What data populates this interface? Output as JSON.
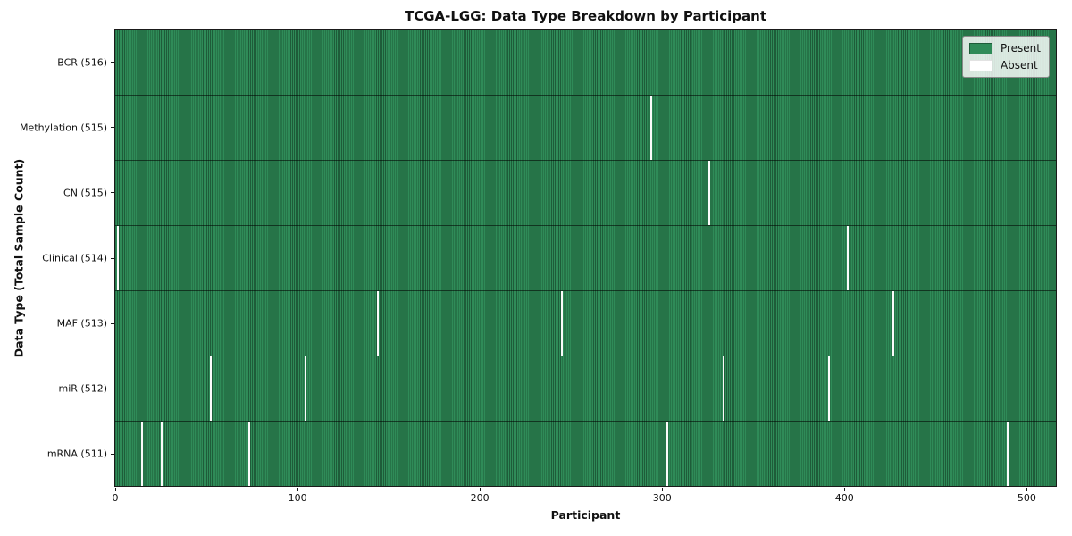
{
  "chart_data": {
    "type": "heatmap",
    "title": "TCGA-LGG: Data Type Breakdown by Participant",
    "xlabel": "Participant",
    "ylabel": "Data Type (Total Sample Count)",
    "x_ticks": [
      0,
      100,
      200,
      300,
      400,
      500
    ],
    "x_range": [
      -0.5,
      516.5
    ],
    "n_participants": 516,
    "grid": false,
    "legend_position": "upper right",
    "legend": [
      {
        "label": "Present",
        "color": "#2f8b58"
      },
      {
        "label": "Absent",
        "color": "#ffffff"
      }
    ],
    "colors": {
      "present_fill": "#2f8b58",
      "present_edge": "#1e5c39",
      "absent": "#ffffff"
    },
    "rows": [
      {
        "label": "BCR (516)",
        "key": "bcr",
        "total": 516,
        "absent_participants": []
      },
      {
        "label": "Methylation (515)",
        "key": "methylation",
        "total": 515,
        "absent_participants": [
          294
        ]
      },
      {
        "label": "CN (515)",
        "key": "cn",
        "total": 515,
        "absent_participants": [
          326
        ]
      },
      {
        "label": "Clinical (514)",
        "key": "clinical",
        "total": 514,
        "absent_participants": [
          1,
          402
        ]
      },
      {
        "label": "MAF (513)",
        "key": "maf",
        "total": 513,
        "absent_participants": [
          144,
          245,
          427
        ]
      },
      {
        "label": "miR (512)",
        "key": "mir",
        "total": 512,
        "absent_participants": [
          52,
          104,
          334,
          392
        ]
      },
      {
        "label": "mRNA (511)",
        "key": "mrna",
        "total": 511,
        "absent_participants": [
          14,
          25,
          73,
          303,
          490
        ]
      }
    ]
  }
}
